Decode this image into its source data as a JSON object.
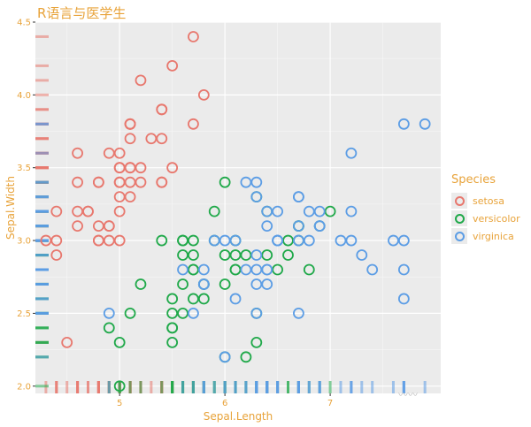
{
  "chart_data": {
    "type": "scatter",
    "title": "R语言与医学生",
    "xlabel": "Sepal.Length",
    "ylabel": "Sepal.Width",
    "xlim": [
      4.2,
      8.05
    ],
    "ylim": [
      1.95,
      4.5
    ],
    "xticks": [
      5,
      6,
      7
    ],
    "yticks": [
      2.0,
      2.5,
      3.0,
      3.5,
      4.0,
      4.5
    ],
    "xtick_labels": [
      "5",
      "6",
      "7"
    ],
    "ytick_labels": [
      "2.0",
      "2.5",
      "3.0",
      "3.5",
      "4.0",
      "4.5"
    ],
    "legend": {
      "title": "Species",
      "position": "right"
    },
    "series": [
      {
        "name": "setosa",
        "color": "#e8786e",
        "points": [
          [
            5.1,
            3.5
          ],
          [
            4.9,
            3.0
          ],
          [
            4.7,
            3.2
          ],
          [
            4.6,
            3.1
          ],
          [
            5.0,
            3.6
          ],
          [
            5.4,
            3.9
          ],
          [
            4.6,
            3.4
          ],
          [
            5.0,
            3.4
          ],
          [
            4.4,
            2.9
          ],
          [
            4.9,
            3.1
          ],
          [
            5.4,
            3.7
          ],
          [
            4.8,
            3.4
          ],
          [
            4.8,
            3.0
          ],
          [
            4.3,
            3.0
          ],
          [
            5.8,
            4.0
          ],
          [
            5.7,
            4.4
          ],
          [
            5.4,
            3.9
          ],
          [
            5.1,
            3.5
          ],
          [
            5.7,
            3.8
          ],
          [
            5.1,
            3.8
          ],
          [
            5.4,
            3.4
          ],
          [
            5.1,
            3.7
          ],
          [
            4.6,
            3.6
          ],
          [
            5.1,
            3.3
          ],
          [
            4.8,
            3.4
          ],
          [
            5.0,
            3.0
          ],
          [
            5.0,
            3.4
          ],
          [
            5.2,
            3.5
          ],
          [
            5.2,
            3.4
          ],
          [
            4.7,
            3.2
          ],
          [
            4.8,
            3.1
          ],
          [
            5.4,
            3.4
          ],
          [
            5.2,
            4.1
          ],
          [
            5.5,
            4.2
          ],
          [
            4.9,
            3.1
          ],
          [
            5.0,
            3.2
          ],
          [
            5.5,
            3.5
          ],
          [
            4.9,
            3.6
          ],
          [
            4.4,
            3.0
          ],
          [
            5.1,
            3.4
          ],
          [
            5.0,
            3.5
          ],
          [
            4.5,
            2.3
          ],
          [
            4.4,
            3.2
          ],
          [
            5.0,
            3.5
          ],
          [
            5.1,
            3.8
          ],
          [
            4.8,
            3.0
          ],
          [
            5.1,
            3.8
          ],
          [
            4.6,
            3.2
          ],
          [
            5.3,
            3.7
          ],
          [
            5.0,
            3.3
          ]
        ]
      },
      {
        "name": "versicolor",
        "color": "#20a94a",
        "points": [
          [
            7.0,
            3.2
          ],
          [
            6.4,
            3.2
          ],
          [
            6.9,
            3.1
          ],
          [
            5.5,
            2.3
          ],
          [
            6.5,
            2.8
          ],
          [
            5.7,
            2.8
          ],
          [
            6.3,
            3.3
          ],
          [
            4.9,
            2.4
          ],
          [
            6.6,
            2.9
          ],
          [
            5.2,
            2.7
          ],
          [
            5.0,
            2.0
          ],
          [
            5.9,
            3.0
          ],
          [
            6.0,
            2.2
          ],
          [
            6.1,
            2.9
          ],
          [
            5.6,
            2.9
          ],
          [
            6.7,
            3.1
          ],
          [
            5.6,
            3.0
          ],
          [
            5.8,
            2.7
          ],
          [
            6.2,
            2.2
          ],
          [
            5.6,
            2.5
          ],
          [
            5.9,
            3.2
          ],
          [
            6.1,
            2.8
          ],
          [
            6.3,
            2.5
          ],
          [
            6.1,
            2.8
          ],
          [
            6.4,
            2.9
          ],
          [
            6.6,
            3.0
          ],
          [
            6.8,
            2.8
          ],
          [
            6.7,
            3.0
          ],
          [
            6.0,
            2.9
          ],
          [
            5.7,
            2.6
          ],
          [
            5.5,
            2.4
          ],
          [
            5.5,
            2.4
          ],
          [
            5.8,
            2.7
          ],
          [
            6.0,
            2.7
          ],
          [
            5.4,
            3.0
          ],
          [
            6.0,
            3.4
          ],
          [
            6.7,
            3.1
          ],
          [
            6.3,
            2.3
          ],
          [
            5.6,
            3.0
          ],
          [
            5.5,
            2.5
          ],
          [
            5.5,
            2.6
          ],
          [
            6.1,
            3.0
          ],
          [
            5.8,
            2.6
          ],
          [
            5.0,
            2.3
          ],
          [
            5.6,
            2.7
          ],
          [
            5.7,
            3.0
          ],
          [
            5.7,
            2.9
          ],
          [
            6.2,
            2.9
          ],
          [
            5.1,
            2.5
          ],
          [
            5.7,
            2.8
          ]
        ]
      },
      {
        "name": "virginica",
        "color": "#5c9de5",
        "points": [
          [
            6.3,
            3.3
          ],
          [
            5.8,
            2.7
          ],
          [
            7.1,
            3.0
          ],
          [
            6.3,
            2.9
          ],
          [
            6.5,
            3.0
          ],
          [
            7.6,
            3.0
          ],
          [
            4.9,
            2.5
          ],
          [
            7.3,
            2.9
          ],
          [
            6.7,
            2.5
          ],
          [
            7.2,
            3.6
          ],
          [
            6.5,
            3.2
          ],
          [
            6.4,
            2.7
          ],
          [
            6.8,
            3.0
          ],
          [
            5.7,
            2.5
          ],
          [
            5.8,
            2.8
          ],
          [
            6.4,
            3.2
          ],
          [
            6.5,
            3.0
          ],
          [
            7.7,
            3.8
          ],
          [
            7.7,
            2.6
          ],
          [
            6.0,
            2.2
          ],
          [
            6.9,
            3.2
          ],
          [
            5.6,
            2.8
          ],
          [
            7.7,
            2.8
          ],
          [
            6.3,
            2.7
          ],
          [
            6.7,
            3.3
          ],
          [
            7.2,
            3.2
          ],
          [
            6.2,
            2.8
          ],
          [
            6.1,
            3.0
          ],
          [
            6.4,
            2.8
          ],
          [
            7.2,
            3.0
          ],
          [
            7.4,
            2.8
          ],
          [
            7.9,
            3.8
          ],
          [
            6.4,
            2.8
          ],
          [
            6.3,
            2.8
          ],
          [
            6.1,
            2.6
          ],
          [
            7.7,
            3.0
          ],
          [
            6.3,
            3.4
          ],
          [
            6.4,
            3.1
          ],
          [
            6.0,
            3.0
          ],
          [
            6.9,
            3.1
          ],
          [
            6.7,
            3.1
          ],
          [
            6.9,
            3.1
          ],
          [
            5.8,
            2.7
          ],
          [
            6.8,
            3.2
          ],
          [
            6.7,
            3.3
          ],
          [
            6.7,
            3.0
          ],
          [
            6.3,
            2.5
          ],
          [
            6.5,
            3.0
          ],
          [
            6.2,
            3.4
          ],
          [
            5.9,
            3.0
          ]
        ]
      }
    ],
    "rug": {
      "sides": "bottom-left"
    }
  },
  "watermark": "〰〰"
}
